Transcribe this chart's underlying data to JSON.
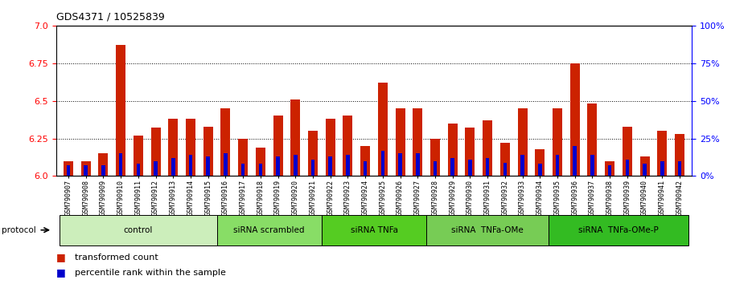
{
  "title": "GDS4371 / 10525839",
  "samples": [
    "GSM790907",
    "GSM790908",
    "GSM790909",
    "GSM790910",
    "GSM790911",
    "GSM790912",
    "GSM790913",
    "GSM790914",
    "GSM790915",
    "GSM790916",
    "GSM790917",
    "GSM790918",
    "GSM790919",
    "GSM790920",
    "GSM790921",
    "GSM790922",
    "GSM790923",
    "GSM790924",
    "GSM790925",
    "GSM790926",
    "GSM790927",
    "GSM790928",
    "GSM790929",
    "GSM790930",
    "GSM790931",
    "GSM790932",
    "GSM790933",
    "GSM790934",
    "GSM790935",
    "GSM790936",
    "GSM790937",
    "GSM790938",
    "GSM790939",
    "GSM790940",
    "GSM790941",
    "GSM790942"
  ],
  "red_values": [
    6.1,
    6.1,
    6.15,
    6.87,
    6.27,
    6.32,
    6.38,
    6.38,
    6.33,
    6.45,
    6.25,
    6.19,
    6.4,
    6.51,
    6.3,
    6.38,
    6.4,
    6.2,
    6.62,
    6.45,
    6.45,
    6.25,
    6.35,
    6.32,
    6.37,
    6.22,
    6.45,
    6.18,
    6.45,
    6.75,
    6.48,
    6.1,
    6.33,
    6.13,
    6.3,
    6.28
  ],
  "blue_values": [
    6.07,
    6.07,
    6.07,
    6.15,
    6.08,
    6.1,
    6.12,
    6.14,
    6.13,
    6.15,
    6.08,
    6.08,
    6.13,
    6.14,
    6.11,
    6.13,
    6.14,
    6.1,
    6.17,
    6.15,
    6.15,
    6.1,
    6.12,
    6.11,
    6.12,
    6.09,
    6.14,
    6.08,
    6.14,
    6.2,
    6.14,
    6.07,
    6.11,
    6.08,
    6.1,
    6.1
  ],
  "groups": [
    {
      "label": "control",
      "start": 0,
      "end": 9,
      "color": "#cceebb"
    },
    {
      "label": "siRNA scrambled",
      "start": 9,
      "end": 15,
      "color": "#88dd66"
    },
    {
      "label": "siRNA TNFa",
      "start": 15,
      "end": 21,
      "color": "#55cc22"
    },
    {
      "label": "siRNA  TNFa-OMe",
      "start": 21,
      "end": 28,
      "color": "#77cc55"
    },
    {
      "label": "siRNA  TNFa-OMe-P",
      "start": 28,
      "end": 36,
      "color": "#33bb22"
    }
  ],
  "ylim_left": [
    6.0,
    7.0
  ],
  "ylim_right": [
    0,
    100
  ],
  "yticks_left": [
    6.0,
    6.25,
    6.5,
    6.75,
    7.0
  ],
  "yticks_right": [
    0,
    25,
    50,
    75,
    100
  ],
  "bar_color_red": "#cc2200",
  "bar_color_blue": "#0000cc",
  "bg_color": "#ffffff",
  "plot_bg": "#ffffff",
  "bar_width": 0.55,
  "base_value": 6.0,
  "dotted_lines": [
    6.25,
    6.5,
    6.75
  ]
}
